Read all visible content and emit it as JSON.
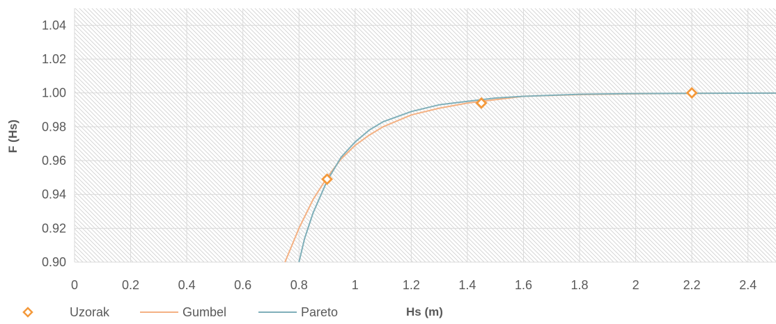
{
  "chart_data": {
    "type": "line",
    "xlabel": "Hs (m)",
    "ylabel": "F (Hs)",
    "xlim": [
      0,
      2.5
    ],
    "ylim": [
      0.9,
      1.05
    ],
    "x_ticks": [
      "0",
      "0.2",
      "0.4",
      "0.6",
      "0.8",
      "1",
      "1.2",
      "1.4",
      "1.6",
      "1.8",
      "2",
      "2.2",
      "2.4"
    ],
    "y_ticks": [
      "0.90",
      "0.92",
      "0.94",
      "0.96",
      "0.98",
      "1.00",
      "1.02",
      "1.04"
    ],
    "grid": true,
    "legend_position": "bottom-left",
    "series": [
      {
        "name": "Uzorak",
        "kind": "markers",
        "color": "#F4993B",
        "x": [
          0.9,
          1.45,
          2.2
        ],
        "y": [
          0.949,
          0.994,
          1.0
        ]
      },
      {
        "name": "Gumbel",
        "kind": "line",
        "color": "#F4B183",
        "x": [
          0.75,
          0.78,
          0.8,
          0.85,
          0.9,
          0.95,
          1.0,
          1.05,
          1.1,
          1.2,
          1.3,
          1.4,
          1.5,
          1.6,
          1.8,
          2.0,
          2.2,
          2.5
        ],
        "y": [
          0.9,
          0.912,
          0.92,
          0.937,
          0.95,
          0.961,
          0.969,
          0.975,
          0.98,
          0.987,
          0.991,
          0.994,
          0.996,
          0.998,
          0.999,
          0.9995,
          0.9998,
          0.9999
        ]
      },
      {
        "name": "Pareto",
        "kind": "line",
        "color": "#7FAFB9",
        "x": [
          0.8,
          0.82,
          0.85,
          0.9,
          0.95,
          1.0,
          1.05,
          1.1,
          1.2,
          1.3,
          1.4,
          1.5,
          1.6,
          1.8,
          2.0,
          2.2,
          2.5
        ],
        "y": [
          0.9,
          0.914,
          0.929,
          0.948,
          0.962,
          0.971,
          0.978,
          0.983,
          0.989,
          0.993,
          0.995,
          0.997,
          0.998,
          0.9992,
          0.9996,
          0.9998,
          0.9999
        ]
      }
    ]
  }
}
